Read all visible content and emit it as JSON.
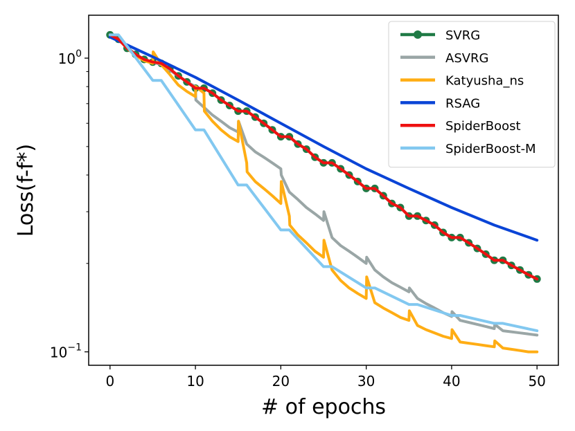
{
  "chart_data": {
    "type": "line",
    "xlabel": "# of epochs",
    "ylabel": "Loss(f-f*)",
    "yscale": "log",
    "xlim": [
      -2.5,
      52.5
    ],
    "ylim": [
      0.09,
      1.4
    ],
    "xticks": [
      0,
      10,
      20,
      30,
      40,
      50
    ],
    "xtick_labels": [
      "0",
      "10",
      "20",
      "30",
      "40",
      "50"
    ],
    "yticks": [
      {
        "value": 1.0,
        "base": "10",
        "exp": "0"
      },
      {
        "value": 0.1,
        "base": "10",
        "exp": "−1"
      }
    ],
    "legend_position": "top-right",
    "series": [
      {
        "name": "SVRG",
        "color": "#1f7a45",
        "marker": true,
        "x": [
          0,
          1,
          2,
          3,
          4,
          5,
          6,
          7,
          8,
          9,
          10,
          11,
          12,
          13,
          14,
          15,
          16,
          17,
          18,
          19,
          20,
          21,
          22,
          23,
          24,
          25,
          26,
          27,
          28,
          29,
          30,
          31,
          32,
          33,
          34,
          35,
          36,
          37,
          38,
          39,
          40,
          41,
          42,
          43,
          44,
          45,
          46,
          47,
          48,
          49,
          50
        ],
        "y": [
          1.2,
          1.16,
          1.08,
          1.03,
          0.99,
          0.97,
          0.96,
          0.92,
          0.87,
          0.83,
          0.79,
          0.79,
          0.76,
          0.72,
          0.69,
          0.66,
          0.66,
          0.63,
          0.6,
          0.57,
          0.54,
          0.54,
          0.51,
          0.49,
          0.46,
          0.44,
          0.44,
          0.42,
          0.4,
          0.38,
          0.36,
          0.36,
          0.34,
          0.32,
          0.31,
          0.29,
          0.29,
          0.28,
          0.27,
          0.255,
          0.245,
          0.245,
          0.235,
          0.225,
          0.215,
          0.205,
          0.205,
          0.197,
          0.19,
          0.183,
          0.177
        ]
      },
      {
        "name": "ASVRG",
        "color": "#9aa6a6",
        "x": [
          0,
          1,
          2,
          3,
          4,
          5,
          6,
          7,
          8,
          9,
          10,
          10.05,
          11,
          12,
          13,
          14,
          15,
          15.05,
          16,
          17,
          18,
          19,
          20,
          20.05,
          21,
          22,
          23,
          24,
          25,
          25.05,
          26,
          27,
          28,
          29,
          30,
          30.05,
          31,
          32,
          33,
          34,
          35,
          35.05,
          36,
          37,
          38,
          39,
          40,
          40.05,
          41,
          42,
          43,
          44,
          45,
          45.05,
          46,
          47,
          48,
          49,
          50
        ],
        "y": [
          1.2,
          1.16,
          1.09,
          1.03,
          0.99,
          0.97,
          0.95,
          0.91,
          0.87,
          0.83,
          0.8,
          0.72,
          0.68,
          0.64,
          0.61,
          0.58,
          0.56,
          0.61,
          0.51,
          0.48,
          0.46,
          0.44,
          0.42,
          0.4,
          0.35,
          0.33,
          0.31,
          0.295,
          0.28,
          0.3,
          0.245,
          0.23,
          0.22,
          0.21,
          0.2,
          0.21,
          0.19,
          0.18,
          0.172,
          0.166,
          0.16,
          0.165,
          0.152,
          0.146,
          0.141,
          0.136,
          0.132,
          0.137,
          0.128,
          0.126,
          0.124,
          0.122,
          0.12,
          0.124,
          0.118,
          0.117,
          0.116,
          0.115,
          0.114
        ]
      },
      {
        "name": "Katyusha_ns",
        "color": "#ffad14",
        "x": [
          0,
          1,
          2,
          3,
          4,
          5,
          5.05,
          6,
          7,
          8,
          9,
          10,
          10.05,
          11,
          11.05,
          12,
          13,
          14,
          15,
          15.05,
          16,
          16.05,
          17,
          18,
          19,
          20,
          20.05,
          21,
          21.05,
          22,
          23,
          24,
          25,
          25.05,
          26,
          27,
          28,
          29,
          30,
          30.05,
          31,
          32,
          33,
          34,
          35,
          35.05,
          36,
          37,
          38,
          39,
          40,
          40.05,
          41,
          42,
          43,
          44,
          45,
          45.05,
          46,
          47,
          48,
          49,
          50
        ],
        "y": [
          1.2,
          1.16,
          1.08,
          1.02,
          0.98,
          0.96,
          1.05,
          0.95,
          0.88,
          0.81,
          0.77,
          0.74,
          0.8,
          0.76,
          0.66,
          0.61,
          0.57,
          0.54,
          0.52,
          0.61,
          0.44,
          0.41,
          0.38,
          0.36,
          0.34,
          0.32,
          0.38,
          0.29,
          0.27,
          0.25,
          0.235,
          0.22,
          0.21,
          0.24,
          0.19,
          0.175,
          0.165,
          0.158,
          0.152,
          0.18,
          0.147,
          0.141,
          0.136,
          0.131,
          0.128,
          0.138,
          0.123,
          0.119,
          0.116,
          0.113,
          0.111,
          0.119,
          0.108,
          0.107,
          0.106,
          0.105,
          0.104,
          0.109,
          0.103,
          0.102,
          0.101,
          0.1,
          0.1
        ]
      },
      {
        "name": "RSAG",
        "color": "#0a44d6",
        "x": [
          0,
          5,
          10,
          15,
          20,
          25,
          30,
          35,
          40,
          45,
          50
        ],
        "y": [
          1.18,
          1.01,
          0.86,
          0.72,
          0.6,
          0.5,
          0.42,
          0.36,
          0.31,
          0.27,
          0.24
        ]
      },
      {
        "name": "SpiderBoost",
        "color": "#ee1111",
        "x": [
          0,
          1,
          2,
          3,
          4,
          5,
          6,
          7,
          8,
          9,
          10,
          11,
          12,
          13,
          14,
          15,
          16,
          17,
          18,
          19,
          20,
          21,
          22,
          23,
          24,
          25,
          26,
          27,
          28,
          29,
          30,
          31,
          32,
          33,
          34,
          35,
          36,
          37,
          38,
          39,
          40,
          41,
          42,
          43,
          44,
          45,
          46,
          47,
          48,
          49,
          50
        ],
        "y": [
          1.2,
          1.16,
          1.08,
          1.03,
          0.99,
          0.97,
          0.96,
          0.92,
          0.87,
          0.83,
          0.79,
          0.79,
          0.76,
          0.72,
          0.69,
          0.66,
          0.66,
          0.63,
          0.6,
          0.57,
          0.54,
          0.54,
          0.51,
          0.49,
          0.46,
          0.44,
          0.44,
          0.42,
          0.4,
          0.38,
          0.36,
          0.36,
          0.34,
          0.32,
          0.31,
          0.29,
          0.29,
          0.28,
          0.27,
          0.255,
          0.245,
          0.245,
          0.235,
          0.225,
          0.215,
          0.205,
          0.205,
          0.197,
          0.19,
          0.183,
          0.177
        ]
      },
      {
        "name": "SpiderBoost-M",
        "color": "#82c8f0",
        "x": [
          0,
          1,
          5,
          6,
          10,
          11,
          15,
          16,
          20,
          21,
          25,
          26,
          30,
          31,
          35,
          36,
          40,
          41,
          45,
          46,
          50
        ],
        "y": [
          1.2,
          1.2,
          0.84,
          0.84,
          0.57,
          0.57,
          0.37,
          0.37,
          0.26,
          0.26,
          0.195,
          0.195,
          0.165,
          0.165,
          0.145,
          0.145,
          0.133,
          0.133,
          0.125,
          0.125,
          0.118
        ]
      }
    ]
  }
}
